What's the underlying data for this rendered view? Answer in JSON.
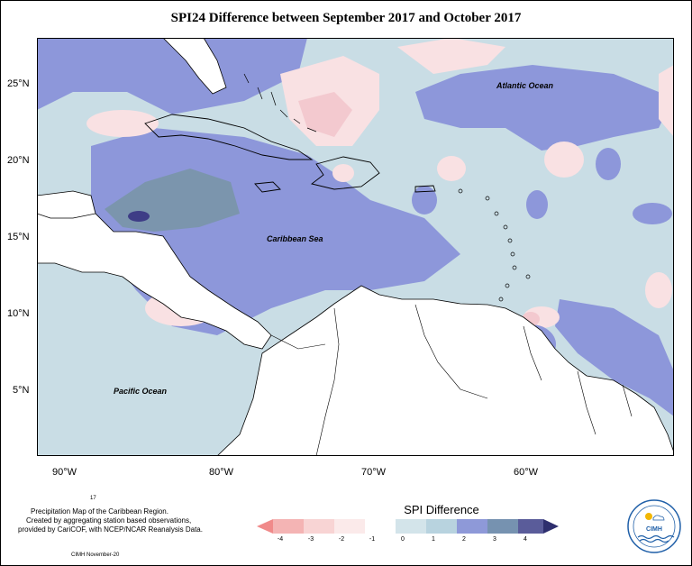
{
  "title": "SPI24 Difference between September 2017 and October 2017",
  "labels": {
    "atlantic": "Atlantic Ocean",
    "caribbean": "Caribbean Sea",
    "pacific": "Pacific Ocean"
  },
  "axes": {
    "lat": [
      "25°N",
      "20°N",
      "15°N",
      "10°N",
      "5°N"
    ],
    "lon": [
      "90°W",
      "80°W",
      "70°W",
      "60°W"
    ]
  },
  "footer": {
    "line1": "Precipitation Map of the Caribbean Region.",
    "line2": "Created by aggregating station based observations,",
    "line3": "provided by CariCOF, with NCEP/NCAR Reanalysis Data.",
    "small": "17",
    "credit": "CIMH November-20"
  },
  "legend": {
    "title": "SPI Difference",
    "ticks": [
      "-4",
      "-3",
      "-2",
      "-1",
      "0",
      "1",
      "2",
      "3",
      "4"
    ],
    "colors": [
      "#f08a8a",
      "#f4b4b4",
      "#f8d4d4",
      "#fbeaea",
      "#d3e4ea",
      "#b8d3df",
      "#8e99d8",
      "#7692b0",
      "#5a5c9a",
      "#2e2f6e"
    ]
  },
  "logo": {
    "text": "CIMH"
  },
  "colors": {
    "light_blue": "#c9dde5",
    "medium_blue": "#8d97da",
    "steel_blue": "#7b95ad",
    "dark_blue": "#3e3d86",
    "light_pink": "#f9e1e3",
    "pink": "#f3c9cf"
  }
}
